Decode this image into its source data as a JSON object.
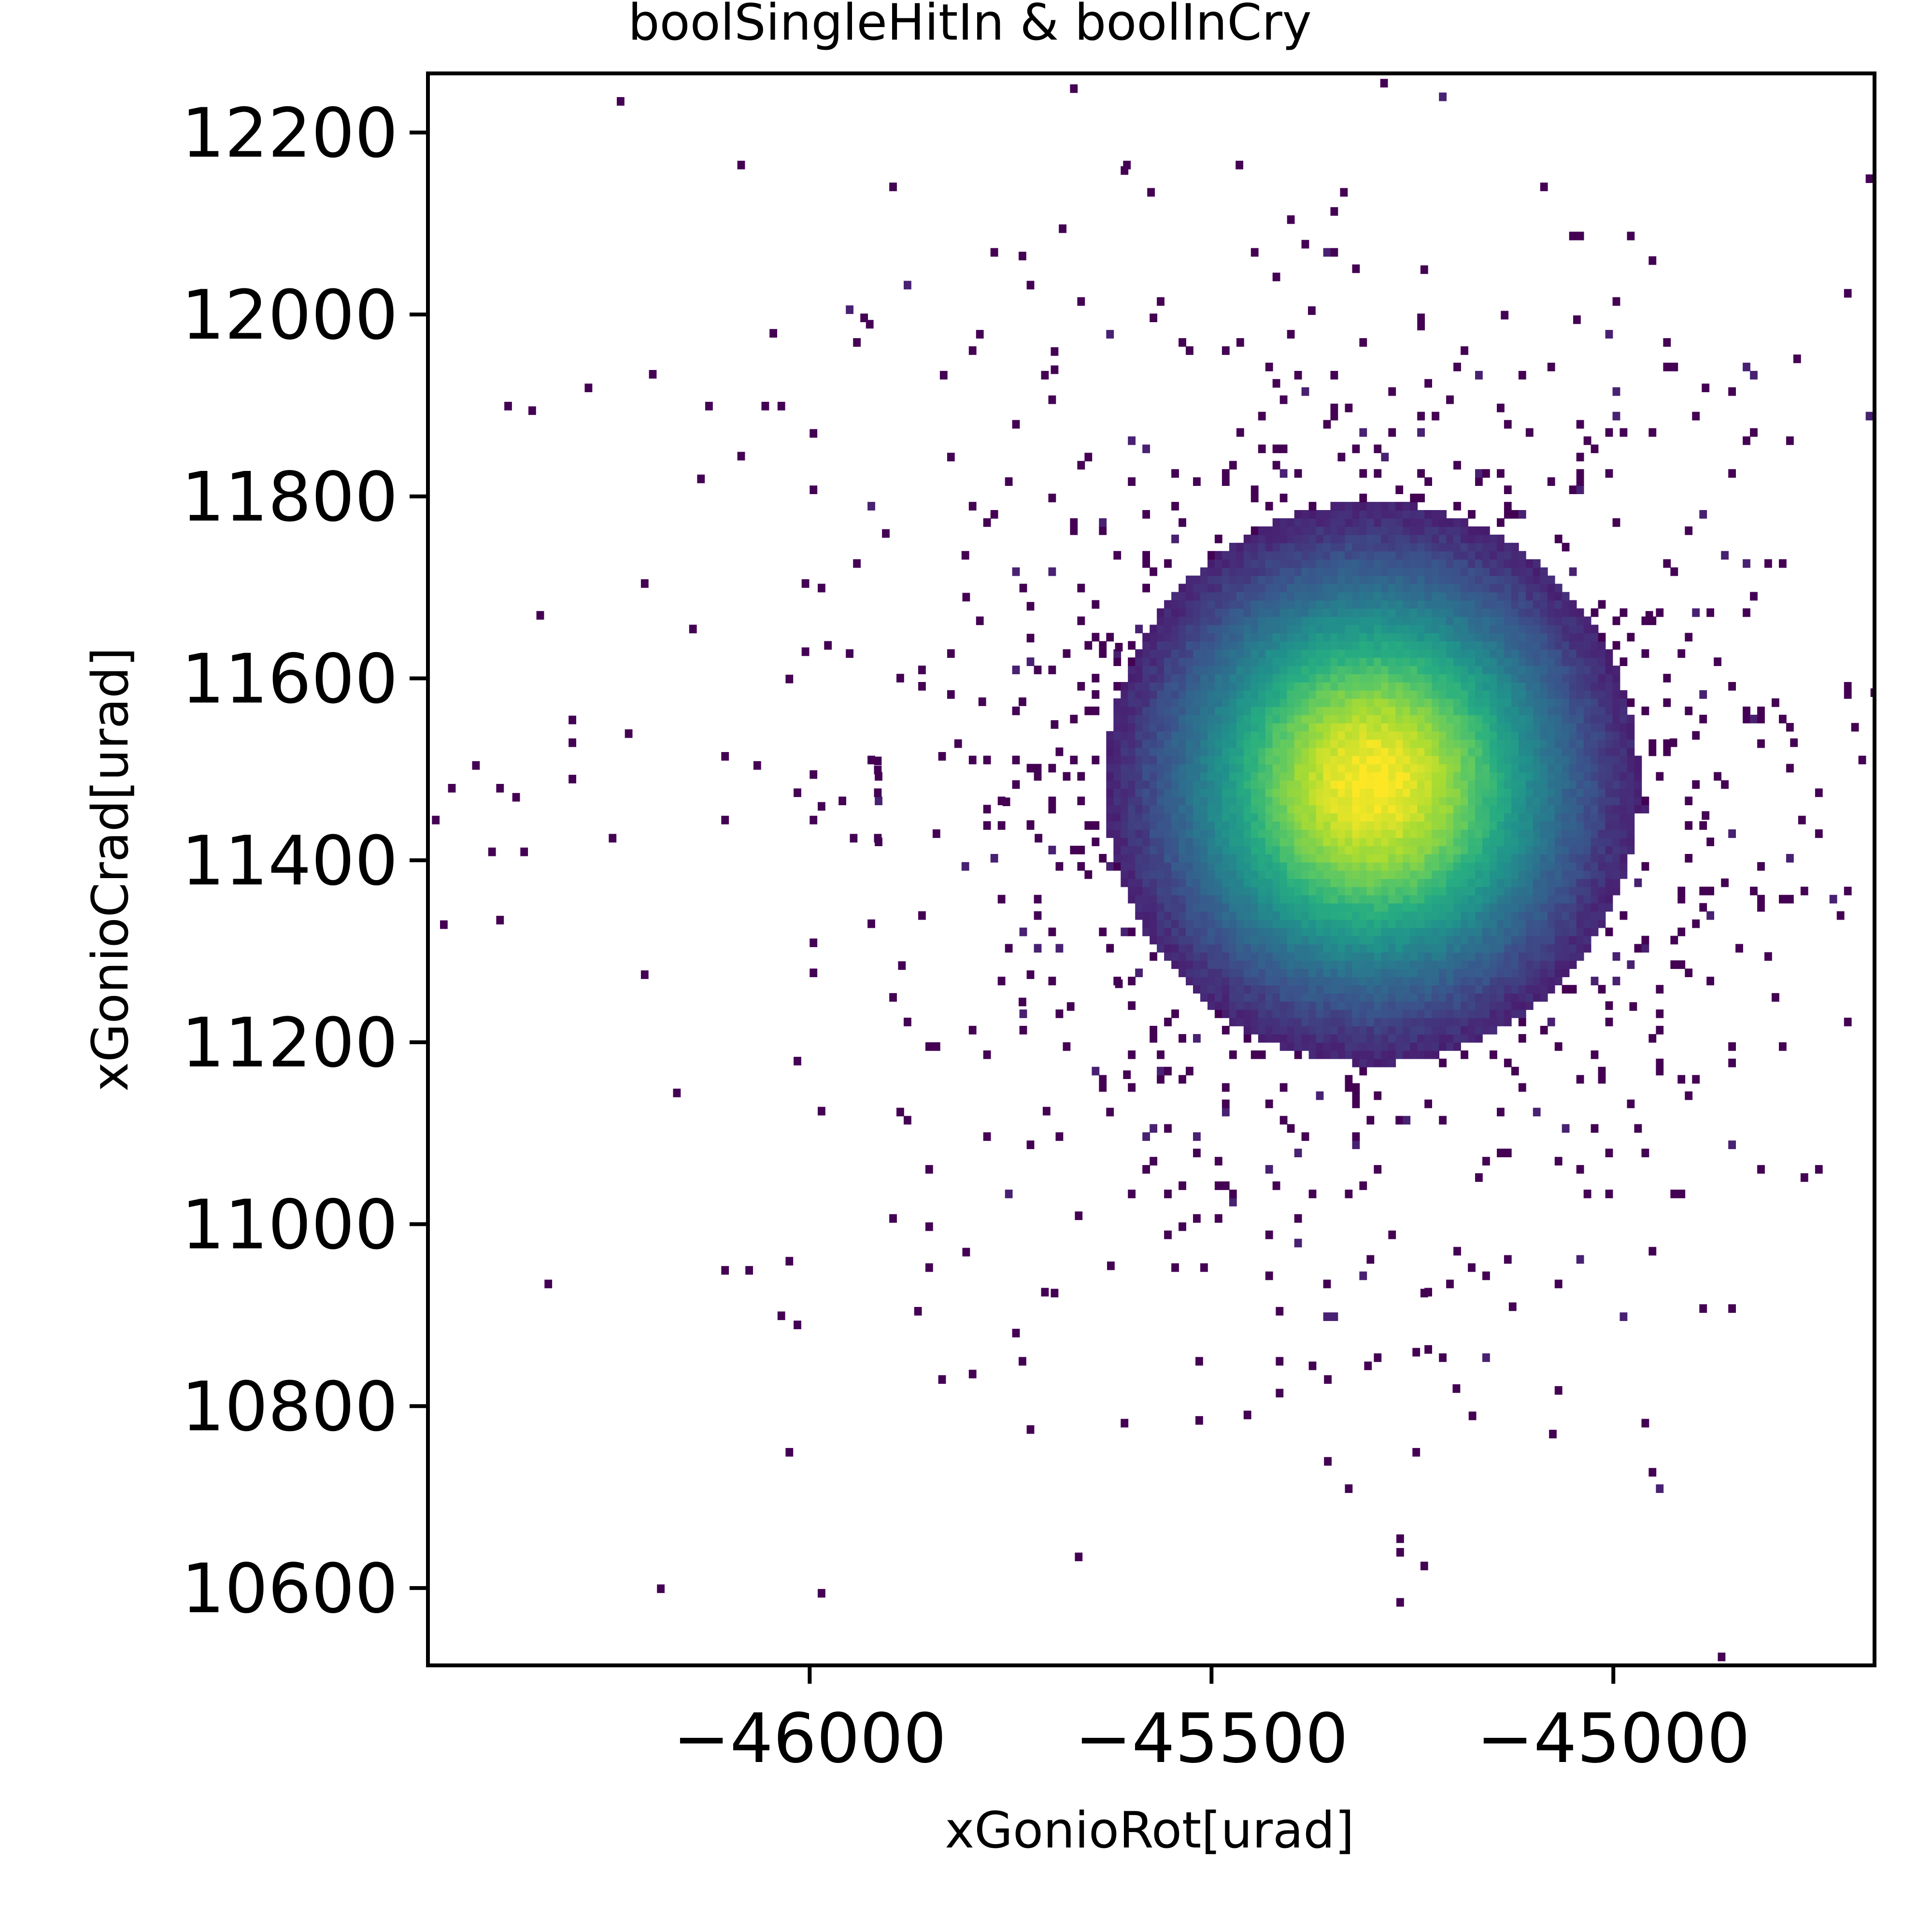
{
  "chart_data": {
    "type": "heatmap",
    "title": "boolSingleHitIn & boolInCry",
    "xlabel": "xGonioRot[urad]",
    "ylabel": "xGonioCrad[urad]",
    "xlim": [
      -46475,
      -44675
    ],
    "ylim": [
      10515,
      12265
    ],
    "xticks": [
      -46000,
      -45500,
      -45000
    ],
    "xtick_labels": [
      "−46000",
      "−45500",
      "−45000"
    ],
    "yticks": [
      10600,
      10800,
      11000,
      11200,
      11400,
      11600,
      11800,
      12000,
      12200
    ],
    "ytick_labels": [
      "10600",
      "10800",
      "11000",
      "11200",
      "11400",
      "11600",
      "11800",
      "12000",
      "12200"
    ],
    "colormap": "viridis",
    "grid": false,
    "bin_size": [
      9,
      9
    ],
    "core": {
      "center": [
        -45300,
        11485
      ],
      "sigma": [
        140,
        130
      ],
      "peak_density": "yellow",
      "note_bins_extent_x": [
        -45650,
        -45000
      ],
      "note_bins_extent_y": [
        10900,
        11950
      ]
    },
    "outliers": [
      [
        -46240,
        12230
      ],
      [
        -45830,
        12265
      ],
      [
        -45290,
        12250
      ],
      [
        -46090,
        12160
      ],
      [
        -45610,
        12160
      ],
      [
        -45470,
        12160
      ],
      [
        -45580,
        12130
      ],
      [
        -45340,
        12130
      ],
      [
        -45690,
        12090
      ],
      [
        -45740,
        12060
      ],
      [
        -45240,
        12045
      ],
      [
        -45380,
        12000
      ],
      [
        -45140,
        11995
      ],
      [
        -45050,
        11990
      ],
      [
        -46050,
        11975
      ],
      [
        -45930,
        11985
      ],
      [
        -46200,
        11930
      ],
      [
        -46280,
        11915
      ],
      [
        -46380,
        11895
      ],
      [
        -46350,
        11890
      ],
      [
        -46130,
        11895
      ],
      [
        -46060,
        11895
      ],
      [
        -46040,
        11895
      ],
      [
        -46000,
        11865
      ],
      [
        -46090,
        11840
      ],
      [
        -44890,
        11915
      ],
      [
        -45700,
        11955
      ],
      [
        -45700,
        11935
      ],
      [
        -46140,
        11815
      ],
      [
        -45910,
        11755
      ],
      [
        -46210,
        11700
      ],
      [
        -45990,
        11695
      ],
      [
        -46010,
        11700
      ],
      [
        -45810,
        11685
      ],
      [
        -46340,
        11665
      ],
      [
        -45730,
        11675
      ],
      [
        -46150,
        11650
      ],
      [
        -45730,
        11640
      ],
      [
        -46010,
        11625
      ],
      [
        -46030,
        11595
      ],
      [
        -44960,
        11665
      ],
      [
        -45620,
        11630
      ],
      [
        -45790,
        11570
      ],
      [
        -45740,
        11570
      ],
      [
        -45700,
        11545
      ],
      [
        -46300,
        11550
      ],
      [
        -46300,
        11525
      ],
      [
        -46230,
        11535
      ],
      [
        -46110,
        11510
      ],
      [
        -46070,
        11500
      ],
      [
        -45920,
        11505
      ],
      [
        -45920,
        11495
      ],
      [
        -45840,
        11510
      ],
      [
        -44680,
        11580
      ],
      [
        -44930,
        11525
      ],
      [
        -44780,
        11525
      ],
      [
        -46420,
        11500
      ],
      [
        -46300,
        11485
      ],
      [
        -46000,
        11490
      ],
      [
        -46020,
        11470
      ],
      [
        -45990,
        11455
      ],
      [
        -45920,
        11470
      ],
      [
        -45760,
        11460
      ],
      [
        -46390,
        11475
      ],
      [
        -46370,
        11465
      ],
      [
        -46450,
        11475
      ],
      [
        -46110,
        11440
      ],
      [
        -46000,
        11440
      ],
      [
        -45950,
        11420
      ],
      [
        -45920,
        11420
      ],
      [
        -46250,
        11420
      ],
      [
        -46400,
        11405
      ],
      [
        -46360,
        11405
      ],
      [
        -45730,
        11435
      ],
      [
        -45720,
        11420
      ],
      [
        -44890,
        11445
      ],
      [
        -44770,
        11440
      ],
      [
        -46470,
        11440
      ],
      [
        -46460,
        11325
      ],
      [
        -46390,
        11330
      ],
      [
        -46000,
        11305
      ],
      [
        -45890,
        11280
      ],
      [
        -45730,
        11270
      ],
      [
        -45740,
        11240
      ],
      [
        -45680,
        11235
      ],
      [
        -45620,
        11260
      ],
      [
        -46210,
        11270
      ],
      [
        -46020,
        11175
      ],
      [
        -45710,
        11120
      ],
      [
        -45610,
        11160
      ],
      [
        -46170,
        11140
      ],
      [
        -45990,
        11120
      ],
      [
        -44980,
        11235
      ],
      [
        -45670,
        11005
      ],
      [
        -45630,
        10950
      ],
      [
        -45810,
        10965
      ],
      [
        -46110,
        10945
      ],
      [
        -46080,
        10945
      ],
      [
        -46030,
        10955
      ],
      [
        -46330,
        10930
      ],
      [
        -46040,
        10895
      ],
      [
        -46020,
        10885
      ],
      [
        -45870,
        10900
      ],
      [
        -45700,
        10920
      ],
      [
        -45240,
        10920
      ],
      [
        -45420,
        10900
      ],
      [
        -45130,
        10905
      ],
      [
        -45740,
        10845
      ],
      [
        -45520,
        10845
      ],
      [
        -45420,
        10845
      ],
      [
        -45310,
        10840
      ],
      [
        -45250,
        10855
      ],
      [
        -45840,
        10825
      ],
      [
        -45360,
        10825
      ],
      [
        -45200,
        10815
      ],
      [
        -45180,
        10785
      ],
      [
        -45730,
        10770
      ],
      [
        -45520,
        10780
      ],
      [
        -45420,
        10810
      ],
      [
        -45080,
        10765
      ],
      [
        -46030,
        10745
      ],
      [
        -45360,
        10735
      ],
      [
        -45250,
        10745
      ],
      [
        -45670,
        10630
      ],
      [
        -45270,
        10650
      ],
      [
        -45270,
        10635
      ],
      [
        -45240,
        10620
      ],
      [
        -45270,
        10580
      ],
      [
        -46190,
        10595
      ],
      [
        -45990,
        10590
      ],
      [
        -44870,
        10520
      ]
    ]
  }
}
